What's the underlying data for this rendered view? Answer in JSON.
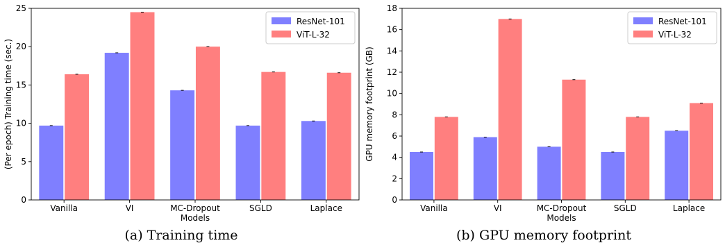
{
  "chart_data": [
    {
      "type": "bar",
      "categories": [
        "Vanilla",
        "VI",
        "MC-Dropout",
        "SGLD",
        "Laplace"
      ],
      "series": [
        {
          "name": "ResNet-101",
          "color": "#7f7fff",
          "values": [
            9.7,
            19.2,
            14.3,
            9.7,
            10.3
          ]
        },
        {
          "name": "ViT-L-32",
          "color": "#ff7f7f",
          "values": [
            16.4,
            24.5,
            20.0,
            16.7,
            16.6
          ]
        }
      ],
      "xlabel": "Models",
      "ylabel": "(Per epoch) Training time (sec.)",
      "ylim": [
        0,
        25
      ],
      "yticks": [
        0,
        5,
        10,
        15,
        20,
        25
      ],
      "legend": "top-right",
      "caption": "(a) Training time"
    },
    {
      "type": "bar",
      "categories": [
        "Vanilla",
        "VI",
        "MC-Dropout",
        "SGLD",
        "Laplace"
      ],
      "series": [
        {
          "name": "ResNet-101",
          "color": "#7f7fff",
          "values": [
            4.5,
            5.9,
            5.0,
            4.5,
            6.5
          ]
        },
        {
          "name": "ViT-L-32",
          "color": "#ff7f7f",
          "values": [
            7.8,
            17.0,
            11.3,
            7.8,
            9.1
          ]
        }
      ],
      "xlabel": "Models",
      "ylabel": "GPU memory footprint (GB)",
      "ylim": [
        0,
        18
      ],
      "yticks": [
        0,
        2,
        4,
        6,
        8,
        10,
        12,
        14,
        16,
        18
      ],
      "legend": "top-right",
      "caption": "(b) GPU memory footprint"
    }
  ]
}
